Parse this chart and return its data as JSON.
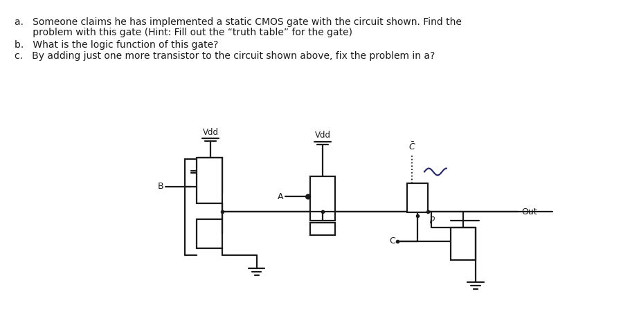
{
  "bg_color": "#ffffff",
  "text_color": "#000000",
  "line_color": "#1a1a1a",
  "line_width": 1.6,
  "fig_width": 9.1,
  "fig_height": 4.83,
  "q1a": "a.   Someone claims he has implemented a static CMOS gate with the circuit shown. Find the",
  "q1b": "      problem with this gate (Hint: Fill out the “truth table” for the gate)",
  "q2": "b.   What is the logic function of this gate?",
  "q3": "c.   By adding just one more transistor to the circuit shown above, fix the problem in a?"
}
